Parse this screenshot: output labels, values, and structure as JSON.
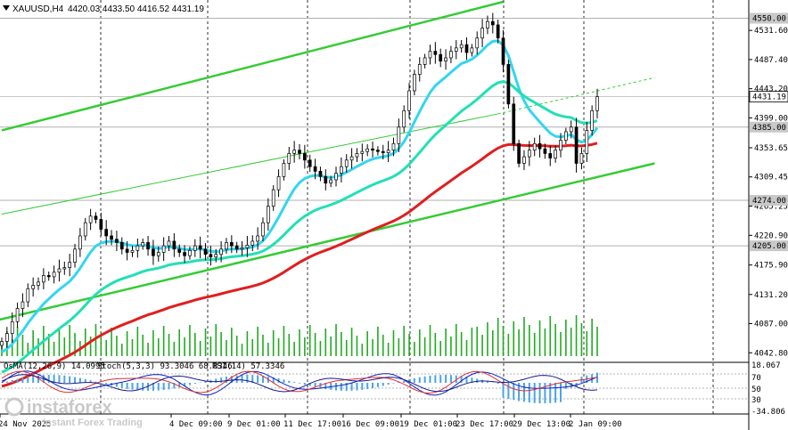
{
  "chart_data": {
    "type": "candlestick",
    "header": {
      "symbol": "XAUUSD,H4",
      "ohlc": "4420.03 4433.50 4416.52 4431.19"
    },
    "price_axis": {
      "ylim": [
        4031,
        4575
      ],
      "ticks": [
        "4531.60",
        "4487.40",
        "4443.20",
        "4399.00",
        "4353.65",
        "4309.45",
        "4265.25",
        "4220.90",
        "4175.90",
        "4131.20",
        "4087.00",
        "4042.80"
      ],
      "levels": [
        {
          "price": 4550.0,
          "label": "4550.00"
        },
        {
          "price": 4385.0,
          "label": "4385.00"
        },
        {
          "price": 4274.0,
          "label": "4274.00"
        },
        {
          "price": 4205.0,
          "label": "4205.00"
        }
      ],
      "current": {
        "price": 4431.19,
        "label": "4431.19"
      }
    },
    "time_axis": {
      "labels": [
        "24 Nov 2025",
        "4 Dec 09:00",
        "9 Dec 01:00",
        "11 Dec 17:00",
        "16 Dec 09:00",
        "19 Dec 01:00",
        "23 Dec 17:00",
        "29 Dec 13:00",
        "2 Jan 09:00"
      ],
      "bars": 115
    },
    "closes": [
      4060,
      4072,
      4090,
      4110,
      4120,
      4140,
      4145,
      4150,
      4160,
      4158,
      4165,
      4170,
      4172,
      4180,
      4200,
      4220,
      4240,
      4250,
      4245,
      4230,
      4220,
      4215,
      4210,
      4200,
      4195,
      4198,
      4205,
      4210,
      4200,
      4190,
      4195,
      4205,
      4212,
      4200,
      4195,
      4190,
      4198,
      4205,
      4200,
      4192,
      4188,
      4192,
      4200,
      4210,
      4205,
      4200,
      4202,
      4206,
      4212,
      4220,
      4240,
      4265,
      4290,
      4310,
      4330,
      4345,
      4350,
      4345,
      4335,
      4325,
      4318,
      4310,
      4300,
      4305,
      4315,
      4325,
      4335,
      4340,
      4345,
      4348,
      4352,
      4350,
      4348,
      4346,
      4350,
      4360,
      4385,
      4410,
      4440,
      4465,
      4480,
      4490,
      4500,
      4495,
      4485,
      4490,
      4500,
      4505,
      4510,
      4498,
      4505,
      4520,
      4535,
      4545,
      4540,
      4520,
      4480,
      4420,
      4360,
      4330,
      4340,
      4350,
      4360,
      4352,
      4345,
      4338,
      4350,
      4365,
      4378,
      4385,
      4330,
      4345,
      4380,
      4410,
      4431
    ],
    "moving_averages": [
      {
        "period": "EMA fast",
        "color": "#33d6f0"
      },
      {
        "period": "EMA mid",
        "color": "#22e0b4"
      },
      {
        "period": "EMA slow",
        "color": "#e01e1e"
      }
    ],
    "channel": {
      "color": "#33cc33"
    },
    "indicators": {
      "osma": "OsMA(12,26,9) 14.0995",
      "stoch": "Stoch(5,3,3) 93.3046 68.8346",
      "rsi": "RSI(14) 57.3346",
      "scale": [
        "18.067",
        "70",
        "50",
        "30",
        "-34.806"
      ]
    },
    "watermark": {
      "brand": "instaforex",
      "tagline": "Instant Forex Trading"
    }
  }
}
